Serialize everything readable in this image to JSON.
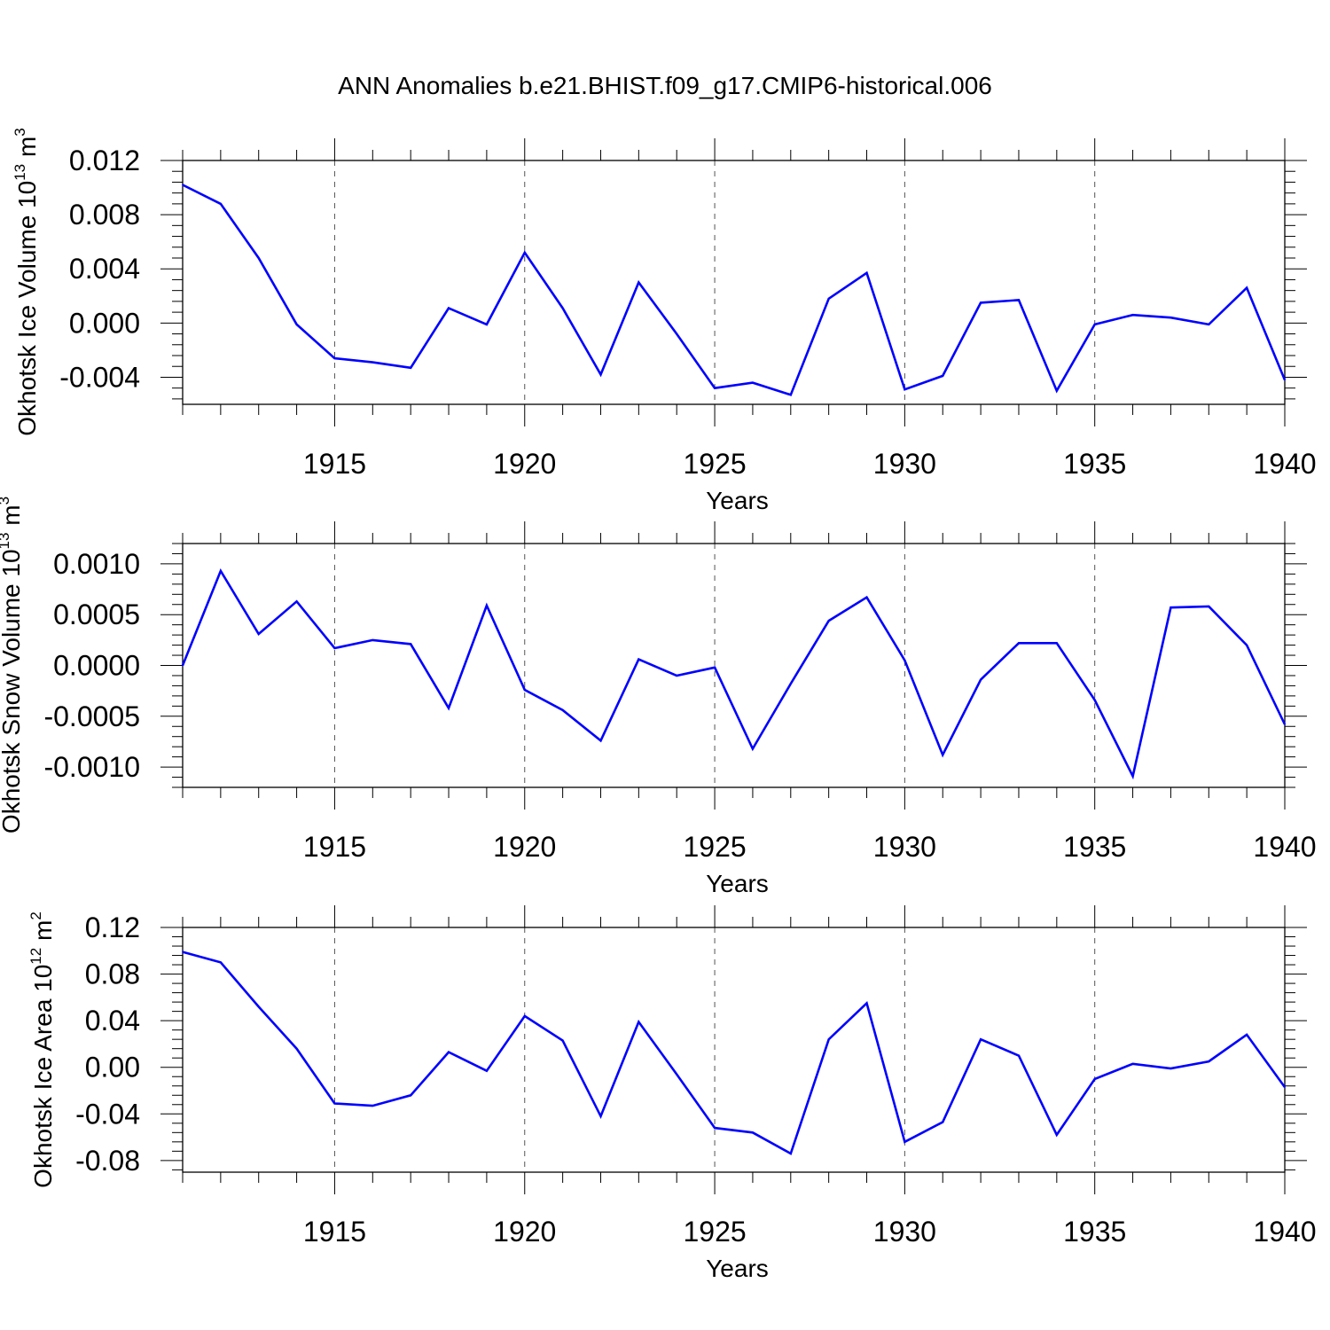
{
  "title": "ANN Anomalies b.e21.BHIST.f09_g17.CMIP6-historical.006",
  "line_color": "#0000ff",
  "chart_data": [
    {
      "type": "line",
      "ylabel": "Okhotsk Ice Volume 10",
      "ylabel_exp": "13",
      "ylabel_unit": " m",
      "ylabel_unit_exp": "3",
      "xlabel": "Years",
      "xlim": [
        1911,
        1940
      ],
      "ylim": [
        -0.006,
        0.012
      ],
      "yticks": [
        0.012,
        0.008,
        0.004,
        0.0,
        -0.004
      ],
      "ytick_labels": [
        "0.012",
        "0.008",
        "0.004",
        "0.000",
        "-0.004"
      ],
      "xticks": [
        1915,
        1920,
        1925,
        1930,
        1935,
        1940
      ],
      "xtick_labels": [
        "1915",
        "1920",
        "1925",
        "1930",
        "1935",
        "1940"
      ],
      "grid": "vertical dashed at major x ticks",
      "x": [
        1911,
        1912,
        1913,
        1914,
        1915,
        1916,
        1917,
        1918,
        1919,
        1920,
        1921,
        1922,
        1923,
        1924,
        1925,
        1926,
        1927,
        1928,
        1929,
        1930,
        1931,
        1932,
        1933,
        1934,
        1935,
        1936,
        1937,
        1938,
        1939,
        1940
      ],
      "values": [
        0.0102,
        0.0088,
        0.0048,
        -0.0001,
        -0.0026,
        -0.0029,
        -0.0033,
        0.0011,
        -0.0001,
        0.0052,
        0.0011,
        -0.0038,
        0.003,
        -0.0008,
        -0.0048,
        -0.0044,
        -0.0053,
        0.0018,
        0.0037,
        -0.0049,
        -0.0039,
        0.0015,
        0.0017,
        -0.005,
        -0.0001,
        0.0006,
        0.0004,
        -0.0001,
        0.0026,
        -0.0042
      ]
    },
    {
      "type": "line",
      "ylabel": "Okhotsk Snow Volume 10",
      "ylabel_exp": "13",
      "ylabel_unit": " m",
      "ylabel_unit_exp": "3",
      "xlabel": "Years",
      "xlim": [
        1911,
        1940
      ],
      "ylim": [
        -0.0012,
        0.0012
      ],
      "yticks": [
        0.001,
        0.0005,
        0.0,
        -0.0005,
        -0.001
      ],
      "ytick_labels": [
        "0.0010",
        "0.0005",
        "0.0000",
        "-0.0005",
        "-0.0010"
      ],
      "xticks": [
        1915,
        1920,
        1925,
        1930,
        1935,
        1940
      ],
      "xtick_labels": [
        "1915",
        "1920",
        "1925",
        "1930",
        "1935",
        "1940"
      ],
      "grid": "vertical dashed at major x ticks",
      "x": [
        1911,
        1912,
        1913,
        1914,
        1915,
        1916,
        1917,
        1918,
        1919,
        1920,
        1921,
        1922,
        1923,
        1924,
        1925,
        1926,
        1927,
        1928,
        1929,
        1930,
        1931,
        1932,
        1933,
        1934,
        1935,
        1936,
        1937,
        1938,
        1939,
        1940
      ],
      "values": [
        0.0,
        0.00093,
        0.00031,
        0.00063,
        0.00017,
        0.00025,
        0.00021,
        -0.00042,
        0.00059,
        -0.00024,
        -0.00044,
        -0.00074,
        6e-05,
        -0.0001,
        -2e-05,
        -0.00082,
        -0.00018,
        0.00044,
        0.00067,
        5e-05,
        -0.00088,
        -0.00014,
        0.00022,
        0.00022,
        -0.00034,
        -0.00109,
        0.00057,
        0.00058,
        0.0002,
        -0.00058
      ]
    },
    {
      "type": "line",
      "ylabel": "Okhotsk Ice Area 10",
      "ylabel_exp": "12",
      "ylabel_unit": " m",
      "ylabel_unit_exp": "2",
      "xlabel": "Years",
      "xlim": [
        1911,
        1940
      ],
      "ylim": [
        -0.09,
        0.12
      ],
      "yticks": [
        0.12,
        0.08,
        0.04,
        0.0,
        -0.04,
        -0.08
      ],
      "ytick_labels": [
        "0.12",
        "0.08",
        "0.04",
        "0.00",
        "-0.04",
        "-0.08"
      ],
      "xticks": [
        1915,
        1920,
        1925,
        1930,
        1935,
        1940
      ],
      "xtick_labels": [
        "1915",
        "1920",
        "1925",
        "1930",
        "1935",
        "1940"
      ],
      "grid": "vertical dashed at major x ticks",
      "x": [
        1911,
        1912,
        1913,
        1914,
        1915,
        1916,
        1917,
        1918,
        1919,
        1920,
        1921,
        1922,
        1923,
        1924,
        1925,
        1926,
        1927,
        1928,
        1929,
        1930,
        1931,
        1932,
        1933,
        1934,
        1935,
        1936,
        1937,
        1938,
        1939,
        1940
      ],
      "values": [
        0.099,
        0.09,
        0.052,
        0.016,
        -0.031,
        -0.033,
        -0.024,
        0.013,
        -0.003,
        0.044,
        0.023,
        -0.042,
        0.039,
        -0.006,
        -0.052,
        -0.056,
        -0.074,
        0.024,
        0.055,
        -0.064,
        -0.047,
        0.024,
        0.01,
        -0.058,
        -0.01,
        0.003,
        -0.001,
        0.005,
        0.028,
        -0.017
      ]
    }
  ]
}
